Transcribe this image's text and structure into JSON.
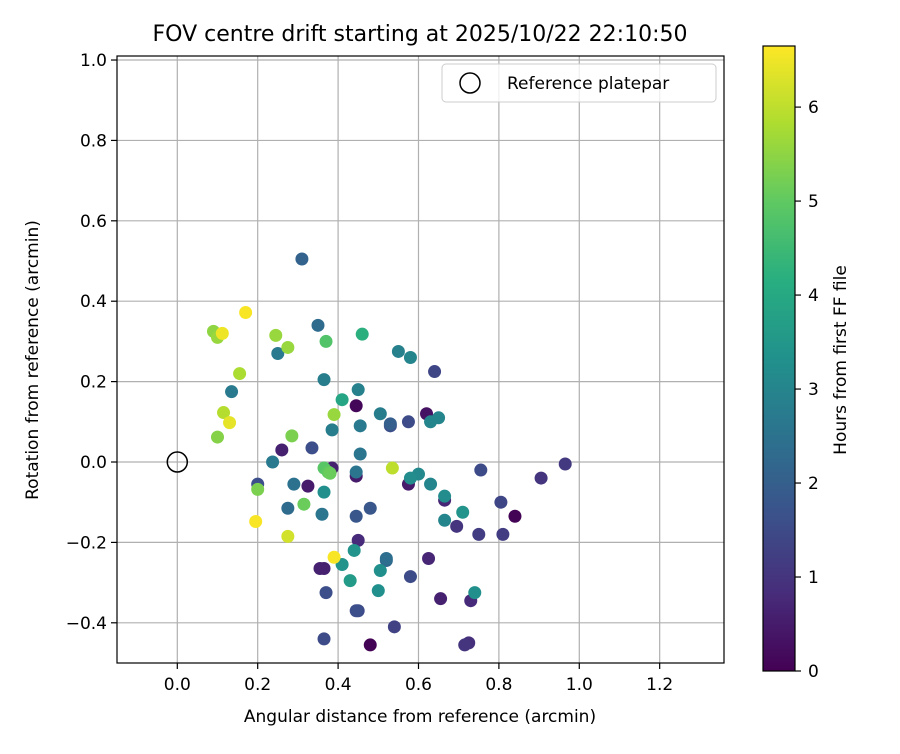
{
  "chart_data": {
    "type": "scatter",
    "title": "FOV centre drift starting at 2025/10/22 22:10:50",
    "xlabel": "Angular distance from reference (arcmin)",
    "ylabel": "Rotation from reference (arcmin)",
    "xlim": [
      -0.15,
      1.36
    ],
    "ylim": [
      -0.5,
      1.01
    ],
    "xticks": [
      0.0,
      0.2,
      0.4,
      0.6,
      0.8,
      1.0,
      1.2
    ],
    "xtick_labels": [
      "0.0",
      "0.2",
      "0.4",
      "0.6",
      "0.8",
      "1.0",
      "1.2"
    ],
    "yticks": [
      -0.4,
      -0.2,
      0.0,
      0.2,
      0.4,
      0.6,
      0.8,
      1.0
    ],
    "ytick_labels": [
      "−0.4",
      "−0.2",
      "0.0",
      "0.2",
      "0.4",
      "0.6",
      "0.8",
      "1.0"
    ],
    "grid": true,
    "legend": {
      "position": "top-right",
      "entries": [
        "Reference platepar"
      ]
    },
    "reference_point": {
      "x": 0.0,
      "y": 0.0,
      "label": "Reference platepar"
    },
    "colorbar": {
      "label": "Hours from first FF file",
      "colormap": "viridis",
      "range": [
        0,
        6.65
      ],
      "ticks": [
        0,
        1,
        2,
        3,
        4,
        5,
        6
      ],
      "tick_labels": [
        "0",
        "1",
        "2",
        "3",
        "4",
        "5",
        "6"
      ]
    },
    "points": [
      [
        0.445,
        0.14,
        0.1
      ],
      [
        0.48,
        -0.455,
        0.05
      ],
      [
        0.84,
        -0.135,
        0.05
      ],
      [
        0.62,
        0.12,
        0.3
      ],
      [
        0.26,
        0.03,
        0.6
      ],
      [
        0.325,
        -0.06,
        0.5
      ],
      [
        0.445,
        -0.035,
        0.5
      ],
      [
        0.385,
        -0.015,
        0.6
      ],
      [
        0.355,
        -0.265,
        0.6
      ],
      [
        0.365,
        -0.265,
        0.6
      ],
      [
        0.45,
        -0.195,
        0.8
      ],
      [
        0.575,
        -0.055,
        0.5
      ],
      [
        0.665,
        -0.095,
        0.7
      ],
      [
        0.655,
        -0.34,
        0.6
      ],
      [
        0.625,
        -0.24,
        0.7
      ],
      [
        0.695,
        -0.16,
        1.0
      ],
      [
        0.73,
        -0.345,
        0.8
      ],
      [
        0.725,
        -0.45,
        0.9
      ],
      [
        0.715,
        -0.455,
        1.0
      ],
      [
        0.905,
        -0.04,
        1.0
      ],
      [
        0.965,
        -0.005,
        1.1
      ],
      [
        0.81,
        -0.18,
        1.2
      ],
      [
        0.75,
        -0.18,
        1.2
      ],
      [
        0.805,
        -0.1,
        1.4
      ],
      [
        0.755,
        -0.02,
        1.5
      ],
      [
        0.54,
        -0.41,
        1.3
      ],
      [
        0.365,
        -0.44,
        1.5
      ],
      [
        0.45,
        -0.37,
        1.5
      ],
      [
        0.445,
        -0.37,
        1.6
      ],
      [
        0.58,
        -0.285,
        1.5
      ],
      [
        0.37,
        -0.325,
        1.6
      ],
      [
        0.64,
        0.225,
        1.4
      ],
      [
        0.575,
        0.1,
        1.5
      ],
      [
        0.53,
        0.09,
        1.6
      ],
      [
        0.335,
        0.035,
        1.6
      ],
      [
        0.2,
        -0.055,
        1.6
      ],
      [
        0.445,
        -0.135,
        1.8
      ],
      [
        0.48,
        -0.115,
        1.8
      ],
      [
        0.31,
        0.505,
        2.1
      ],
      [
        0.35,
        0.34,
        2.3
      ],
      [
        0.53,
        0.095,
        2.0
      ],
      [
        0.52,
        -0.245,
        2.2
      ],
      [
        0.52,
        -0.24,
        2.4
      ],
      [
        0.275,
        -0.115,
        2.3
      ],
      [
        0.29,
        -0.055,
        2.5
      ],
      [
        0.36,
        -0.13,
        2.6
      ],
      [
        0.445,
        -0.025,
        2.6
      ],
      [
        0.455,
        0.02,
        2.6
      ],
      [
        0.455,
        0.09,
        2.7
      ],
      [
        0.385,
        0.08,
        2.8
      ],
      [
        0.505,
        0.12,
        2.8
      ],
      [
        0.25,
        0.27,
        2.7
      ],
      [
        0.135,
        0.175,
        2.7
      ],
      [
        0.237,
        -0.0,
        2.7
      ],
      [
        0.365,
        0.205,
        2.8
      ],
      [
        0.45,
        0.18,
        2.9
      ],
      [
        0.55,
        0.275,
        2.9
      ],
      [
        0.58,
        0.26,
        3.0
      ],
      [
        0.63,
        0.1,
        3.0
      ],
      [
        0.65,
        0.11,
        3.0
      ],
      [
        0.665,
        -0.145,
        3.0
      ],
      [
        0.63,
        -0.055,
        3.0
      ],
      [
        0.6,
        -0.03,
        3.1
      ],
      [
        0.58,
        -0.04,
        3.2
      ],
      [
        0.665,
        -0.085,
        3.2
      ],
      [
        0.71,
        -0.125,
        3.4
      ],
      [
        0.74,
        -0.325,
        3.3
      ],
      [
        0.505,
        -0.27,
        3.3
      ],
      [
        0.5,
        -0.32,
        3.3
      ],
      [
        0.44,
        -0.22,
        3.4
      ],
      [
        0.41,
        -0.255,
        3.4
      ],
      [
        0.365,
        -0.075,
        3.3
      ],
      [
        0.43,
        -0.295,
        3.6
      ],
      [
        0.41,
        0.155,
        3.9
      ],
      [
        0.46,
        0.318,
        4.2
      ],
      [
        0.37,
        0.3,
        4.8
      ],
      [
        0.365,
        -0.015,
        4.9
      ],
      [
        0.375,
        -0.025,
        5.0
      ],
      [
        0.38,
        -0.028,
        5.1
      ],
      [
        0.315,
        -0.105,
        5.1
      ],
      [
        0.285,
        0.065,
        5.3
      ],
      [
        0.39,
        0.118,
        5.6
      ],
      [
        0.2,
        -0.068,
        5.3
      ],
      [
        0.1,
        0.062,
        5.4
      ],
      [
        0.09,
        0.325,
        5.5
      ],
      [
        0.1,
        0.31,
        5.6
      ],
      [
        0.245,
        0.315,
        5.6
      ],
      [
        0.275,
        0.285,
        5.6
      ],
      [
        0.155,
        0.22,
        5.8
      ],
      [
        0.115,
        0.123,
        5.9
      ],
      [
        0.535,
        -0.015,
        6.0
      ],
      [
        0.275,
        -0.185,
        6.2
      ],
      [
        0.13,
        0.098,
        6.4
      ],
      [
        0.112,
        0.32,
        6.5
      ],
      [
        0.17,
        0.372,
        6.6
      ],
      [
        0.195,
        -0.148,
        6.6
      ],
      [
        0.39,
        -0.237,
        6.6
      ]
    ]
  }
}
